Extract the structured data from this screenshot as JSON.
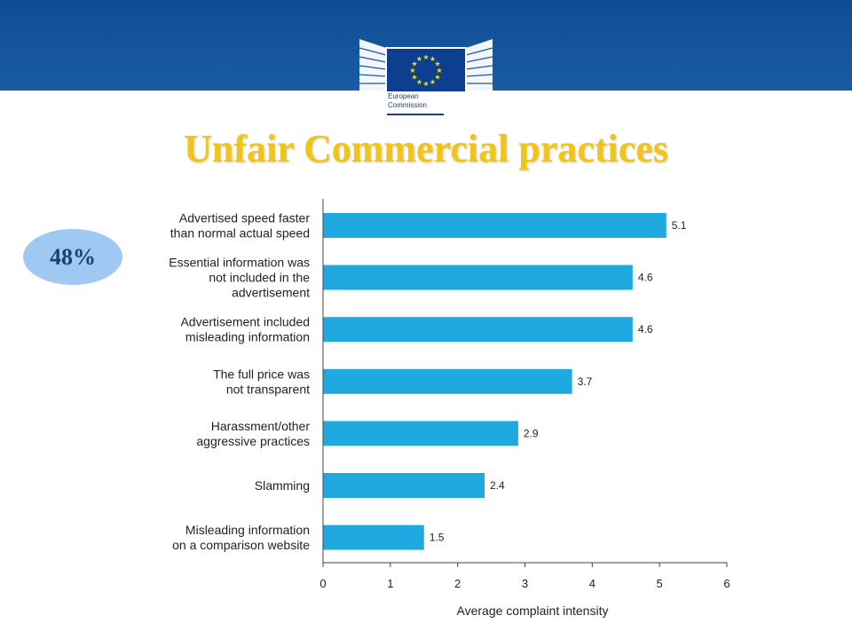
{
  "header": {
    "logo_line1": "European",
    "logo_line2": "Commission",
    "band_color": "#0d4d93"
  },
  "title": "Unfair Commercial practices",
  "badge": "48%",
  "colors": {
    "title": "#f0c419",
    "bar": "#1fa9e1",
    "badge": "#9fc9f3"
  },
  "chart_data": {
    "type": "bar",
    "orientation": "horizontal",
    "categories": [
      [
        "Advertised speed faster",
        "than normal actual speed"
      ],
      [
        "Essential information was",
        "not included in the",
        "advertisement"
      ],
      [
        "Advertisement included",
        "misleading information"
      ],
      [
        "The full price was",
        "not transparent"
      ],
      [
        "Harassment/other",
        "aggressive practices"
      ],
      [
        "Slamming"
      ],
      [
        "Misleading information",
        "on a comparison website"
      ]
    ],
    "values": [
      5.1,
      4.6,
      4.6,
      3.7,
      2.9,
      2.4,
      1.5
    ],
    "value_labels": [
      "5.1",
      "4.6",
      "4.6",
      "3.7",
      "2.9",
      "2.4",
      "1.5"
    ],
    "xlabel": "Average complaint intensity",
    "xlim": [
      0,
      6
    ],
    "xticks": [
      "0",
      "1",
      "2",
      "3",
      "4",
      "5",
      "6"
    ],
    "grid": false,
    "legend": "none"
  }
}
